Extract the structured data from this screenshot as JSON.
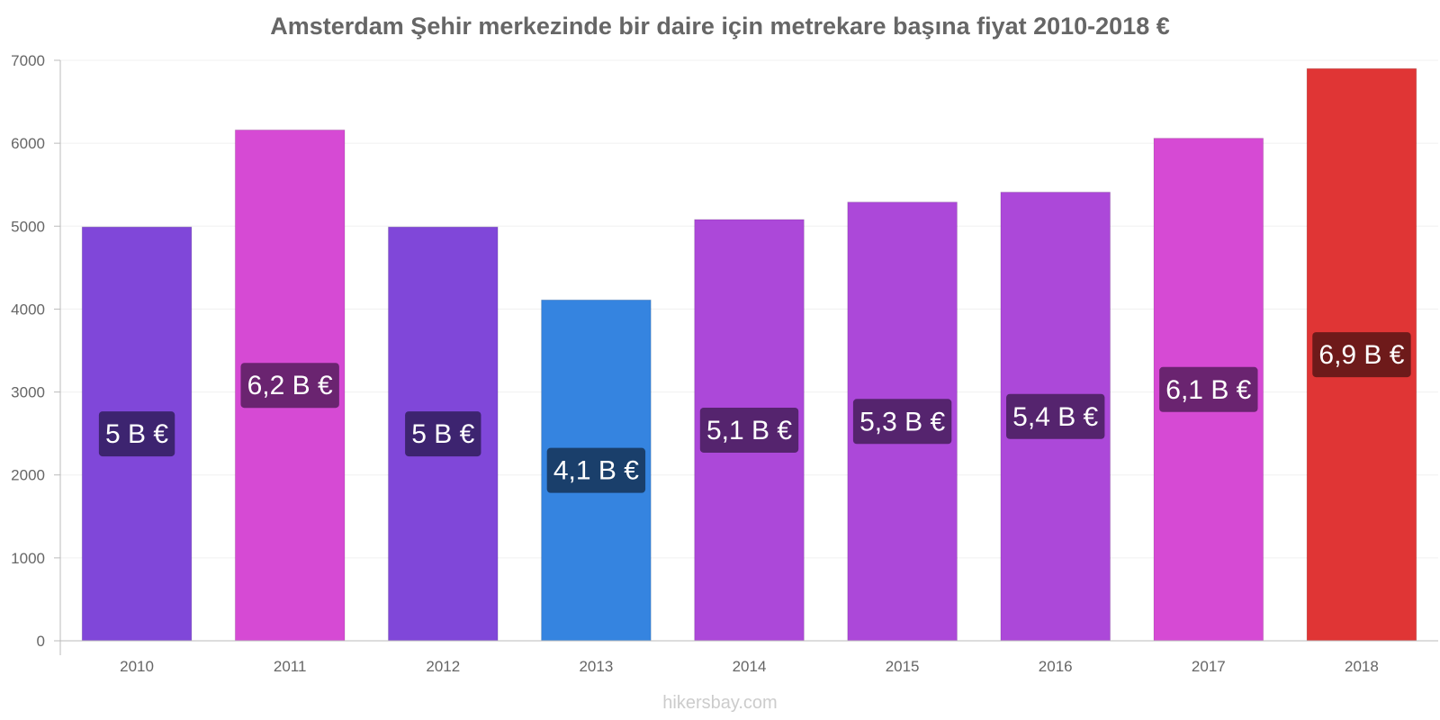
{
  "chart_data": {
    "type": "bar",
    "title": "Amsterdam Şehir merkezinde bir daire için metrekare başına fiyat 2010-2018 €",
    "xlabel": "",
    "ylabel": "",
    "categories": [
      "2010",
      "2011",
      "2012",
      "2013",
      "2014",
      "2015",
      "2016",
      "2017",
      "2018"
    ],
    "values": [
      4990,
      6160,
      4990,
      4110,
      5080,
      5290,
      5410,
      6060,
      6900
    ],
    "data_labels": [
      "5 B €",
      "6,2 B €",
      "5 B €",
      "4,1 B €",
      "5,1 B €",
      "5,3 B €",
      "5,4 B €",
      "6,1 B €",
      "6,9 B €"
    ],
    "bar_colors": [
      "#8047d9",
      "#d64ad4",
      "#8047d9",
      "#3584e0",
      "#ac48d9",
      "#ac48d9",
      "#ac48d9",
      "#d64ad4",
      "#e03535"
    ],
    "label_bg_colors": [
      "#3d2470",
      "#6a2470",
      "#3d2470",
      "#1a3f6b",
      "#55246e",
      "#55246e",
      "#55246e",
      "#6a2470",
      "#6e1a1a"
    ],
    "ylim": [
      0,
      7000
    ],
    "yticks": [
      "0",
      "1000",
      "2000",
      "3000",
      "4000",
      "5000",
      "6000",
      "7000"
    ],
    "grid": true,
    "legend": "none"
  },
  "watermark": "hikersbay.com"
}
